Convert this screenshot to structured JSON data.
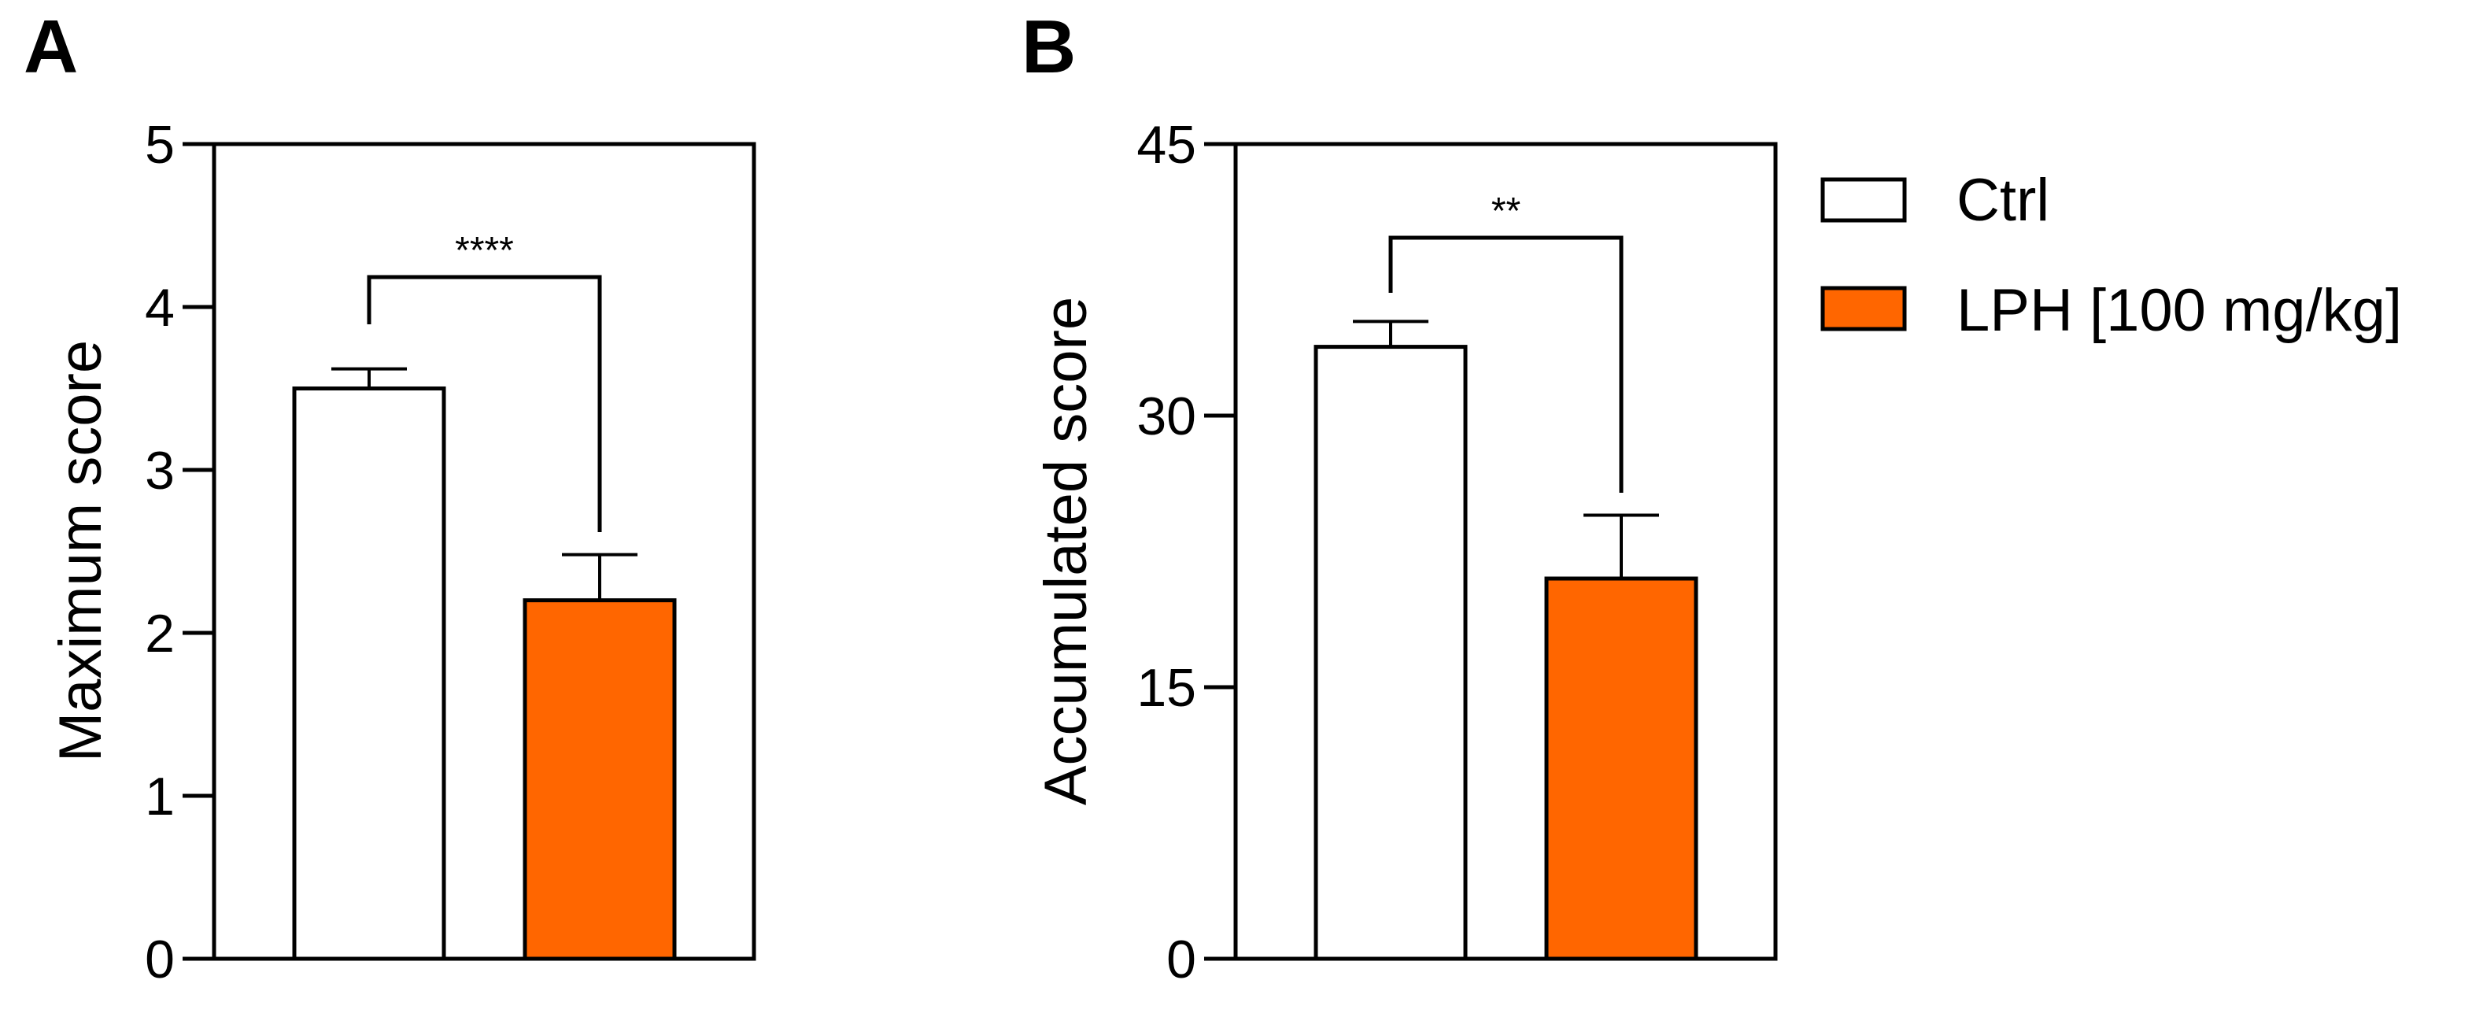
{
  "chart_data": [
    {
      "type": "bar",
      "panel": "A",
      "ylabel": "Maximum score",
      "xlabel": "",
      "ylim": [
        0,
        5
      ],
      "yticks": [
        0,
        1,
        2,
        3,
        4,
        5
      ],
      "categories": [
        "Ctrl",
        "LPH [100 mg/kg]"
      ],
      "values": [
        3.5,
        2.2
      ],
      "errors": [
        0.12,
        0.28
      ],
      "significance": {
        "label": "****",
        "between": [
          0,
          1
        ]
      }
    },
    {
      "type": "bar",
      "panel": "B",
      "ylabel": "Accumulated score",
      "xlabel": "",
      "ylim": [
        0,
        45
      ],
      "yticks": [
        0,
        15,
        30,
        45
      ],
      "categories": [
        "Ctrl",
        "LPH [100 mg/kg]"
      ],
      "values": [
        33.8,
        21.0
      ],
      "errors": [
        1.4,
        3.5
      ],
      "significance": {
        "label": "**",
        "between": [
          0,
          1
        ]
      }
    }
  ],
  "legend": {
    "position": "right",
    "entries": [
      {
        "label": "Ctrl",
        "fill": "#ffffff"
      },
      {
        "label": "LPH [100 mg/kg]",
        "fill": "#ff6600"
      }
    ]
  },
  "colors": {
    "ctrl": "#ffffff",
    "lph": "#ff6600",
    "stroke": "#000000"
  }
}
